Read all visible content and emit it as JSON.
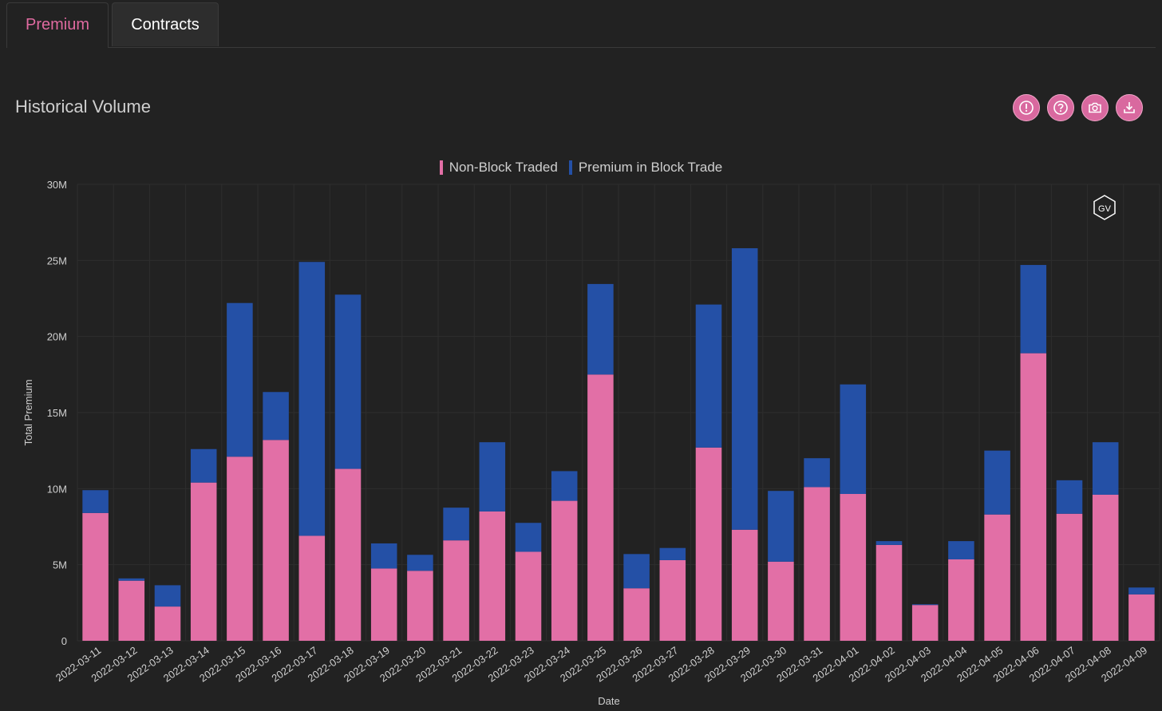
{
  "tabs": [
    {
      "label": "Premium",
      "active": true
    },
    {
      "label": "Contracts",
      "active": false
    }
  ],
  "panel": {
    "title": "Historical Volume",
    "tools": [
      {
        "name": "info-icon"
      },
      {
        "name": "help-icon"
      },
      {
        "name": "camera-icon"
      },
      {
        "name": "download-icon"
      }
    ]
  },
  "watermark": "GV",
  "colors": {
    "accent": "#e06aa0",
    "non_block": "#e26fa6",
    "block": "#2450a6"
  },
  "chart_data": {
    "type": "bar",
    "stacked": true,
    "xlabel": "Date",
    "ylabel": "Total Premium",
    "ylim": [
      0,
      30000000
    ],
    "yticks": [
      "0",
      "5M",
      "10M",
      "15M",
      "20M",
      "25M",
      "30M"
    ],
    "legend_position": "top-center",
    "grid": true,
    "categories": [
      "2022-03-11",
      "2022-03-12",
      "2022-03-13",
      "2022-03-14",
      "2022-03-15",
      "2022-03-16",
      "2022-03-17",
      "2022-03-18",
      "2022-03-19",
      "2022-03-20",
      "2022-03-21",
      "2022-03-22",
      "2022-03-23",
      "2022-03-24",
      "2022-03-25",
      "2022-03-26",
      "2022-03-27",
      "2022-03-28",
      "2022-03-29",
      "2022-03-30",
      "2022-03-31",
      "2022-04-01",
      "2022-04-02",
      "2022-04-03",
      "2022-04-04",
      "2022-04-05",
      "2022-04-06",
      "2022-04-07",
      "2022-04-08",
      "2022-04-09"
    ],
    "series": [
      {
        "name": "Non-Block Traded",
        "color": "#e26fa6",
        "values": [
          8.4,
          3.95,
          2.25,
          10.4,
          12.1,
          13.2,
          6.9,
          11.3,
          4.75,
          4.6,
          6.6,
          8.5,
          5.85,
          9.2,
          17.5,
          3.45,
          5.3,
          12.7,
          7.3,
          5.2,
          10.1,
          9.65,
          6.3,
          2.35,
          5.35,
          8.3,
          18.9,
          8.35,
          9.6,
          3.05
        ]
      },
      {
        "name": "Premium in Block Trade",
        "color": "#2450a6",
        "values": [
          1.5,
          0.15,
          1.4,
          2.2,
          10.1,
          3.15,
          18.0,
          11.45,
          1.65,
          1.05,
          2.15,
          4.55,
          1.9,
          1.95,
          5.95,
          2.25,
          0.8,
          9.4,
          18.5,
          4.65,
          1.9,
          7.2,
          0.25,
          0.05,
          1.2,
          4.2,
          5.8,
          2.2,
          3.45,
          0.45
        ]
      }
    ],
    "value_unit": "M"
  }
}
